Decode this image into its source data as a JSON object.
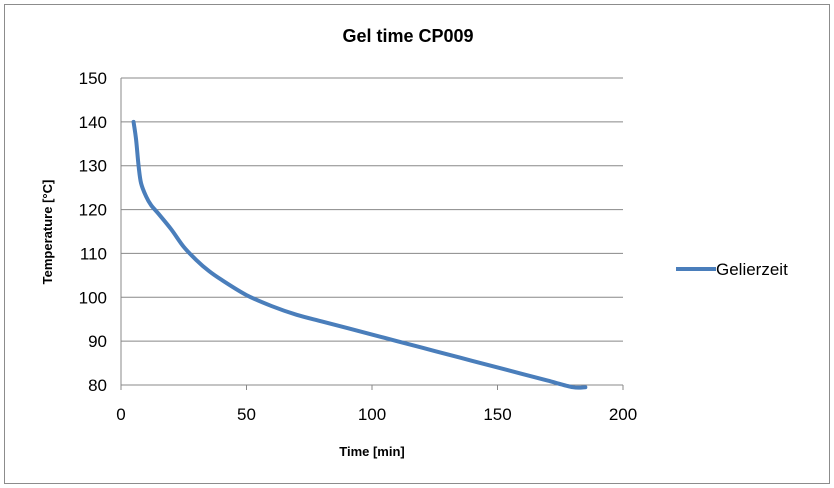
{
  "chart_data": {
    "type": "line",
    "title": "Gel time CP009",
    "xlabel": "Time [min]",
    "ylabel": "Temperature [°C]",
    "xlim": [
      0,
      200
    ],
    "ylim": [
      80,
      150
    ],
    "x_ticks": [
      "0",
      "50",
      "100",
      "150",
      "200"
    ],
    "y_ticks": [
      "80",
      "90",
      "100",
      "110",
      "120",
      "130",
      "140",
      "150"
    ],
    "grid": "horizontal",
    "legend_position": "right",
    "series": [
      {
        "name": "Gelierzeit",
        "color": "#4a7ebb",
        "x": [
          5,
          6,
          7,
          8,
          10,
          12,
          15,
          20,
          25,
          30,
          35,
          40,
          50,
          60,
          70,
          80,
          90,
          100,
          110,
          120,
          130,
          140,
          150,
          160,
          170,
          180,
          185
        ],
        "y": [
          140,
          136,
          130,
          126,
          123,
          121,
          119,
          115.5,
          111.5,
          108.5,
          106,
          104,
          100.5,
          98,
          96,
          94.5,
          93,
          91.5,
          90,
          88.5,
          87,
          85.5,
          84,
          82.5,
          81,
          79.5,
          79.5
        ]
      }
    ]
  }
}
